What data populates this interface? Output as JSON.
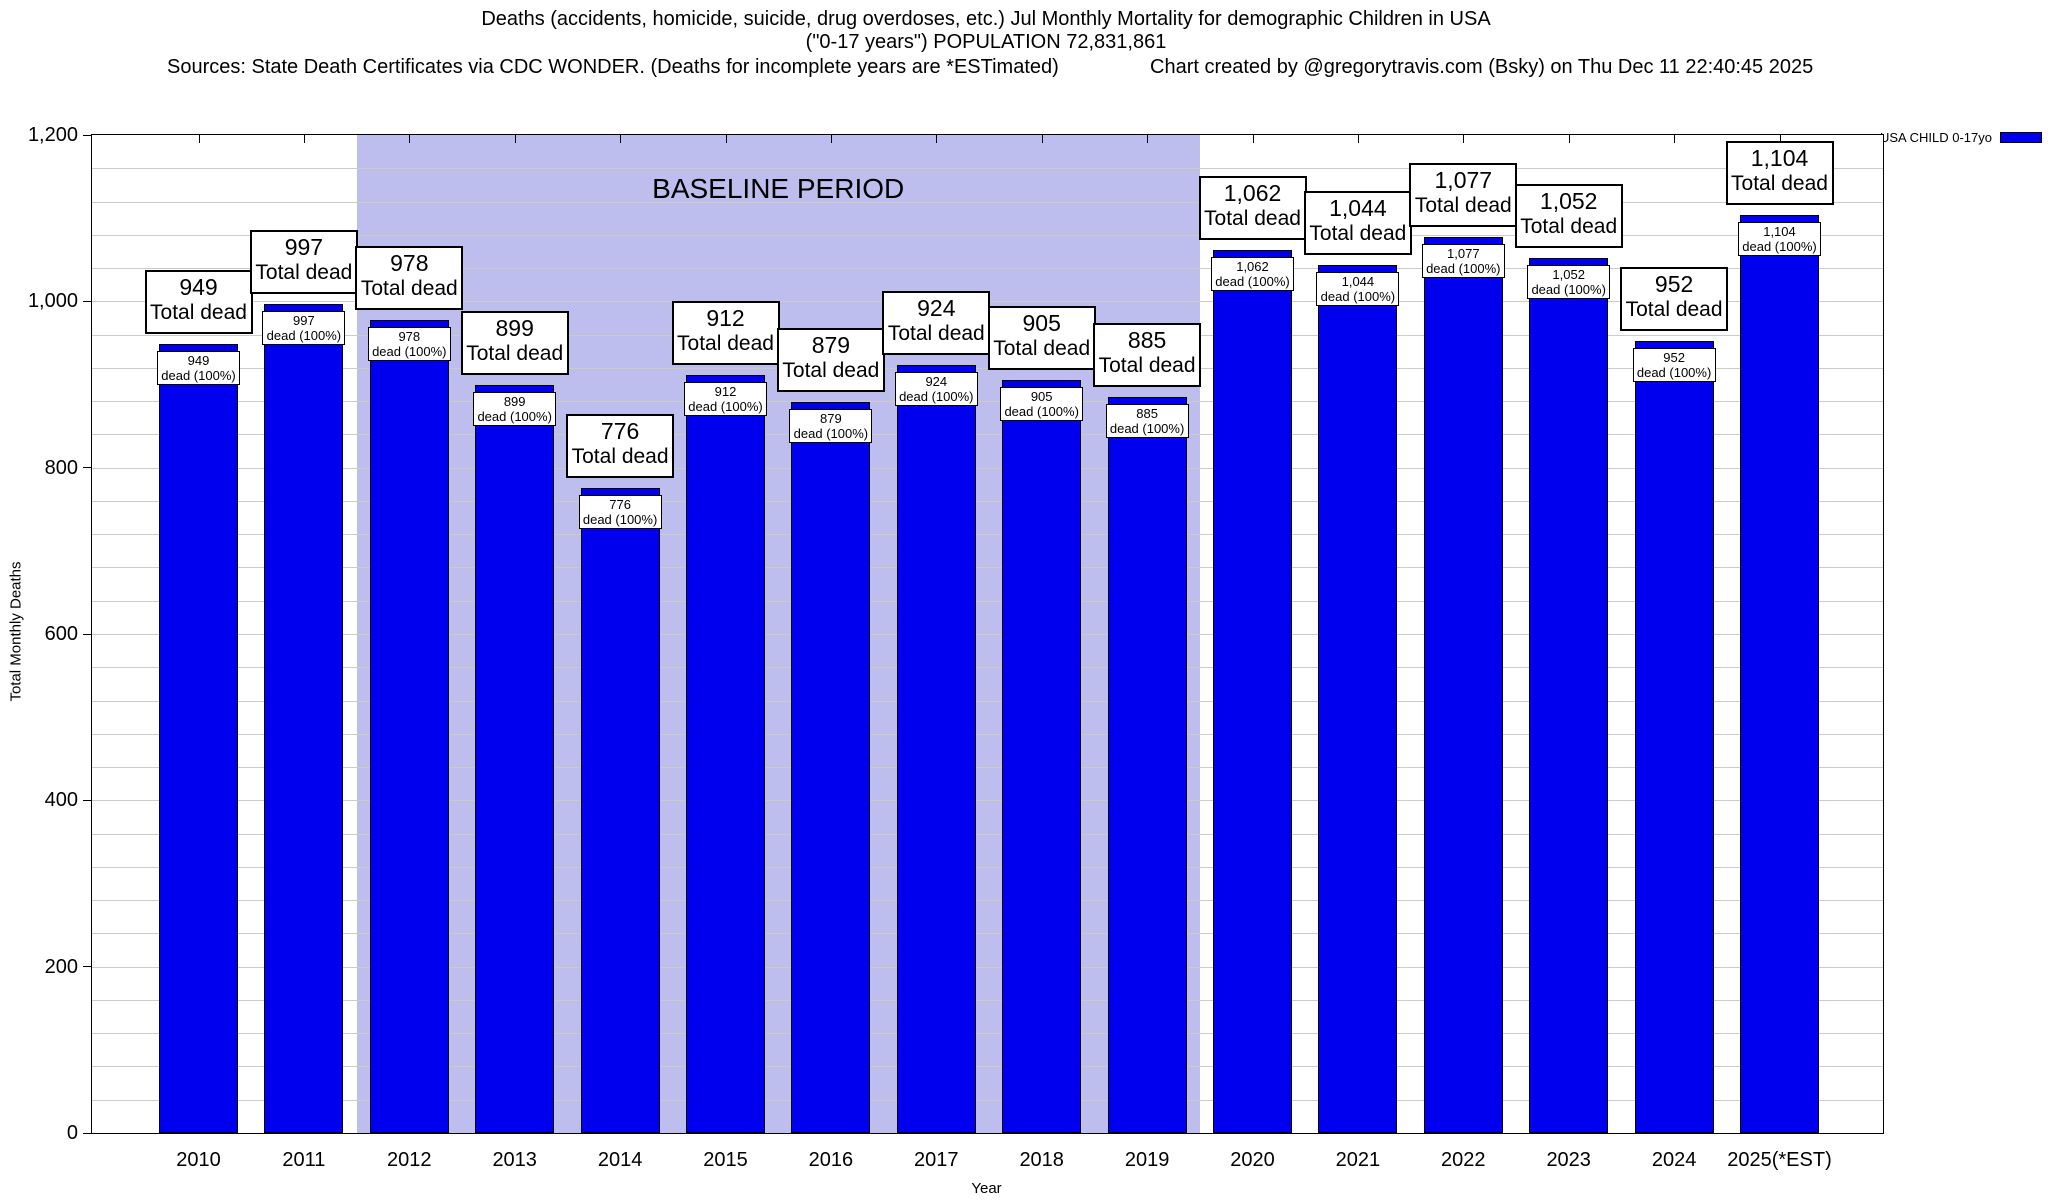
{
  "header": {
    "title_line1": "Deaths (accidents, homicide, suicide, drug overdoses, etc.) Jul Monthly Mortality for demographic Children in USA",
    "title_line2": "(\"0-17 years\") POPULATION 72,831,861",
    "sources": "Sources: State Death Certificates via CDC WONDER. (Deaths for incomplete years are *ESTimated)",
    "credit": "Chart created by @gregorytravis.com (Bsky) on Thu Dec 11 22:40:45 2025"
  },
  "legend": {
    "label": "USA CHILD 0-17yo",
    "swatch_color": "#0000ee",
    "position": "top-right"
  },
  "chart_data": {
    "type": "bar",
    "title": "Deaths (accidents, homicide, suicide, drug overdoses, etc.) Jul Monthly Mortality for demographic Children in USA (\"0-17 years\") POPULATION 72,831,861",
    "categories": [
      "2010",
      "2011",
      "2012",
      "2013",
      "2014",
      "2015",
      "2016",
      "2017",
      "2018",
      "2019",
      "2020",
      "2021",
      "2022",
      "2023",
      "2024",
      "2025(*EST)"
    ],
    "values": [
      949,
      997,
      978,
      899,
      776,
      912,
      879,
      924,
      905,
      885,
      1062,
      1044,
      1077,
      1052,
      952,
      1104
    ],
    "value_labels": [
      "949",
      "997",
      "978",
      "899",
      "776",
      "912",
      "879",
      "924",
      "905",
      "885",
      "1,062",
      "1,044",
      "1,077",
      "1,052",
      "952",
      "1,104"
    ],
    "bar_top_label_suffix": "Total dead",
    "bar_inner_label_suffix": "dead (100%)",
    "series_name": "USA CHILD 0-17yo",
    "xlabel": "Year",
    "ylabel": "Total Monthly Deaths",
    "ylim": [
      0,
      1200
    ],
    "ytick_step": 200,
    "minor_grid_step": 40,
    "yticks": [
      "0",
      "200",
      "400",
      "600",
      "800",
      "1,000",
      "1,200"
    ],
    "grid": true,
    "bar_color": "#0000ee",
    "baseline": {
      "label": "BASELINE PERIOD",
      "start_category": "2012",
      "end_category": "2019",
      "color": "#bdbdee"
    },
    "legend_position": "top-right"
  }
}
